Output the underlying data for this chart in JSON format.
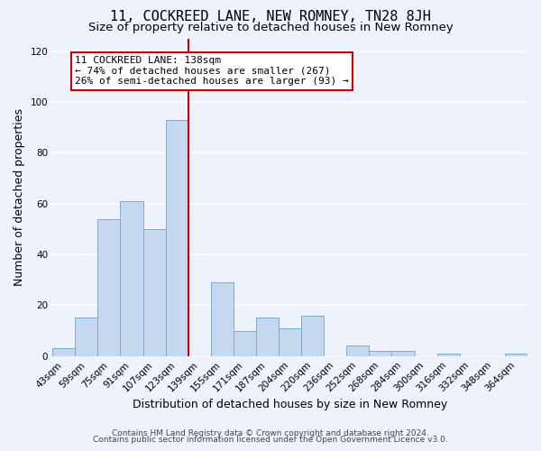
{
  "title": "11, COCKREED LANE, NEW ROMNEY, TN28 8JH",
  "subtitle": "Size of property relative to detached houses in New Romney",
  "xlabel": "Distribution of detached houses by size in New Romney",
  "ylabel": "Number of detached properties",
  "bar_labels": [
    "43sqm",
    "59sqm",
    "75sqm",
    "91sqm",
    "107sqm",
    "123sqm",
    "139sqm",
    "155sqm",
    "171sqm",
    "187sqm",
    "204sqm",
    "220sqm",
    "236sqm",
    "252sqm",
    "268sqm",
    "284sqm",
    "300sqm",
    "316sqm",
    "332sqm",
    "348sqm",
    "364sqm"
  ],
  "bar_values": [
    3,
    15,
    54,
    61,
    50,
    93,
    0,
    29,
    10,
    15,
    11,
    16,
    0,
    4,
    2,
    2,
    0,
    1,
    0,
    0,
    1
  ],
  "bar_color": "#c5d8f0",
  "bar_edge_color": "#7aadd4",
  "marker_line_color": "#cc0000",
  "annotation_line0": "11 COCKREED LANE: 138sqm",
  "annotation_line1": "← 74% of detached houses are smaller (267)",
  "annotation_line2": "26% of semi-detached houses are larger (93) →",
  "annotation_box_color": "#ffffff",
  "annotation_box_edge": "#cc0000",
  "ylim": [
    0,
    125
  ],
  "yticks": [
    0,
    20,
    40,
    60,
    80,
    100,
    120
  ],
  "footer1": "Contains HM Land Registry data © Crown copyright and database right 2024.",
  "footer2": "Contains public sector information licensed under the Open Government Licence v3.0.",
  "background_color": "#eef2fc",
  "grid_color": "#ffffff",
  "title_fontsize": 11,
  "subtitle_fontsize": 9.5,
  "axis_label_fontsize": 9,
  "tick_fontsize": 7.5,
  "annotation_fontsize": 8,
  "footer_fontsize": 6.5
}
